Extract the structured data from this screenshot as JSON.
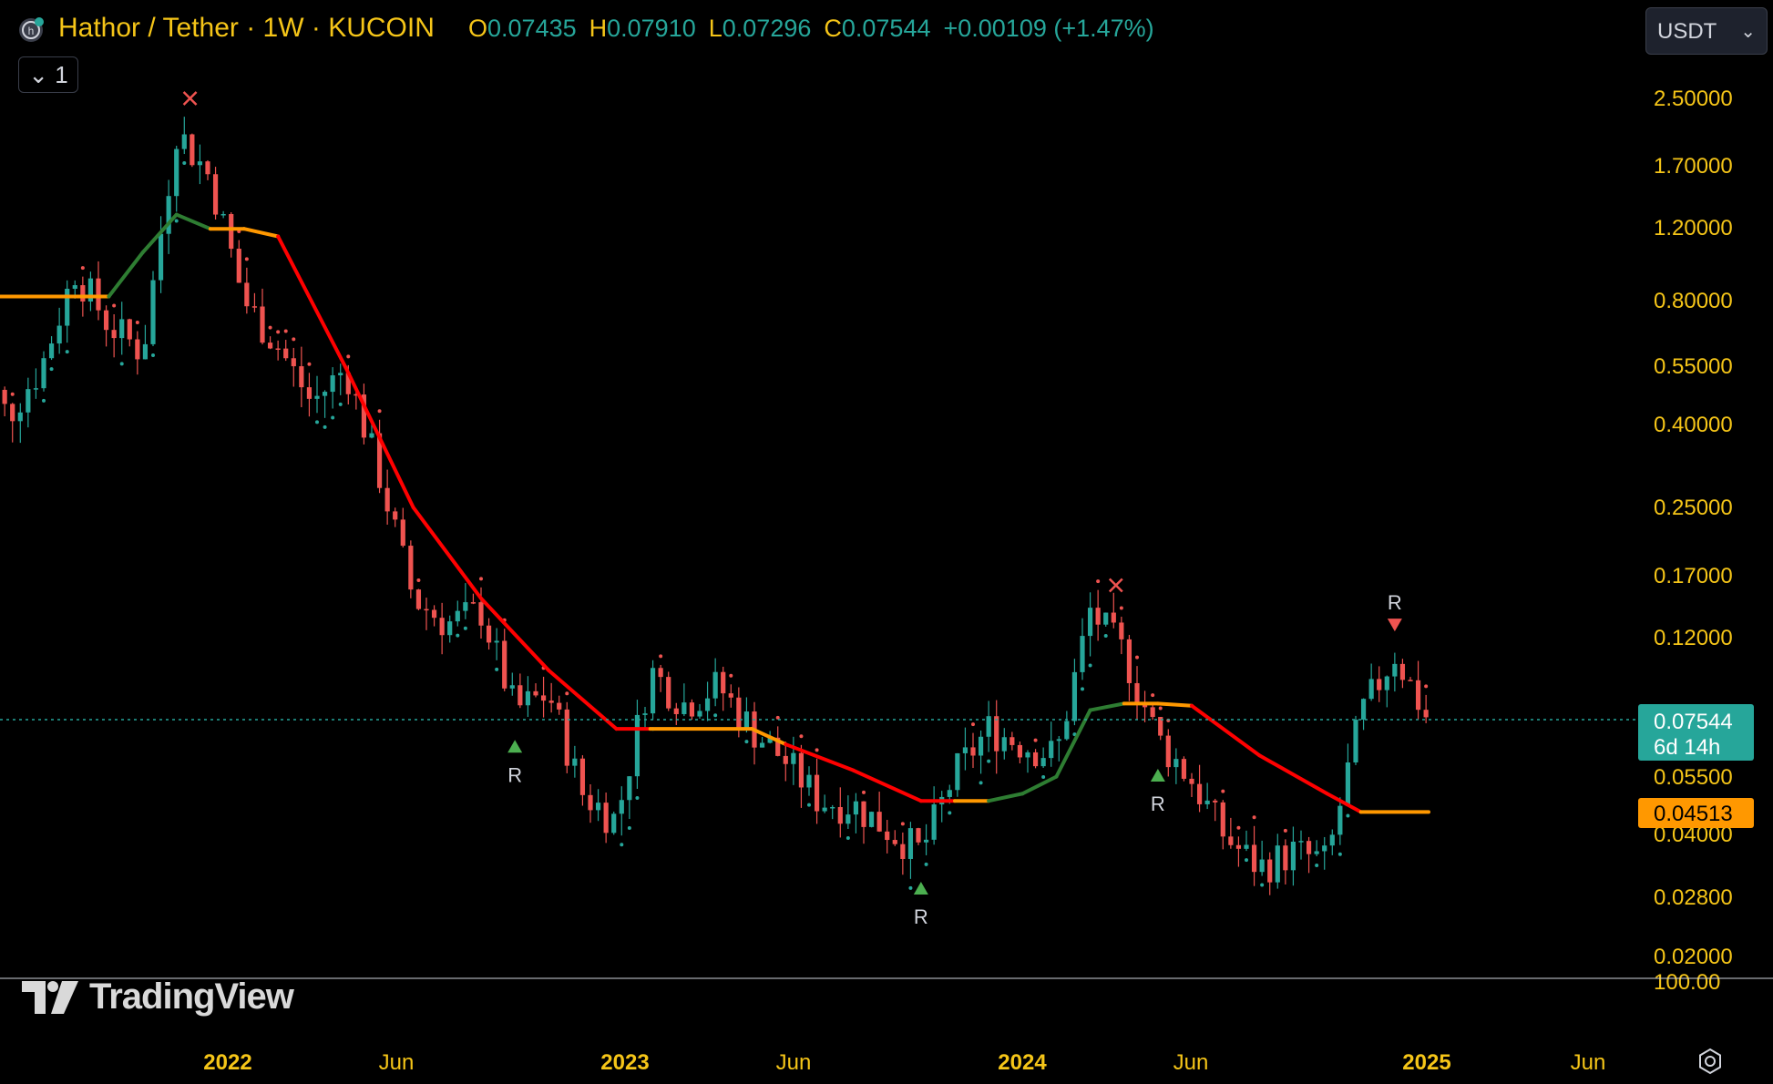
{
  "header": {
    "title": "Hathor / Tether · 1W · KUCOIN",
    "ohlc": {
      "o_label": "O",
      "o": "0.07435",
      "h_label": "H",
      "h": "0.07910",
      "l_label": "L",
      "l": "0.07296",
      "c_label": "C",
      "c": "0.07544",
      "change": "+0.00109 (+1.47%)"
    },
    "indicator_toggle": "1",
    "currency": "USDT"
  },
  "colors": {
    "up": "#26a69a",
    "down": "#ef5350",
    "accent": "#f5c518",
    "trend_red": "#ff0000",
    "trend_green": "#2e7d32",
    "trend_orange": "#ff9800"
  },
  "price_axis": [
    "2.50000",
    "1.70000",
    "1.20000",
    "0.80000",
    "0.55000",
    "0.40000",
    "0.25000",
    "0.17000",
    "0.12000",
    "0.05500",
    "0.04000",
    "0.02800",
    "0.02000",
    "100.00"
  ],
  "last_price": {
    "value": "0.07544",
    "countdown": "6d 14h"
  },
  "stop_price": "0.04513",
  "time_axis": [
    {
      "label": "2022",
      "bold": true
    },
    {
      "label": "Jun",
      "bold": false
    },
    {
      "label": "2023",
      "bold": true
    },
    {
      "label": "Jun",
      "bold": false
    },
    {
      "label": "2024",
      "bold": true
    },
    {
      "label": "Jun",
      "bold": false
    },
    {
      "label": "2025",
      "bold": true
    },
    {
      "label": "Jun",
      "bold": false
    }
  ],
  "signals": [
    {
      "type": "buy",
      "label": "R",
      "date": "2022-10"
    },
    {
      "type": "buy",
      "label": "R",
      "date": "2023-10"
    },
    {
      "type": "buy",
      "label": "R",
      "date": "2024-05"
    },
    {
      "type": "sell",
      "label": "R",
      "date": "2024-12"
    }
  ],
  "brand": "TradingView",
  "chart_data": {
    "type": "candlestick",
    "title": "Hathor / Tether · 1W · KUCOIN",
    "scale": "log",
    "ylim": [
      0.02,
      3.0
    ],
    "x_range": [
      "2021-06",
      "2025-09"
    ],
    "close_points": [
      [
        "2021-06",
        0.6
      ],
      [
        "2021-07",
        0.42
      ],
      [
        "2021-08",
        0.55
      ],
      [
        "2021-09",
        0.95
      ],
      [
        "2021-10",
        0.7
      ],
      [
        "2021-11",
        0.6
      ],
      [
        "2021-12",
        2.1
      ],
      [
        "2022-01",
        1.6
      ],
      [
        "2022-02",
        0.8
      ],
      [
        "2022-03",
        0.62
      ],
      [
        "2022-04",
        0.45
      ],
      [
        "2022-05",
        0.55
      ],
      [
        "2022-06",
        0.3
      ],
      [
        "2022-07",
        0.15
      ],
      [
        "2022-08",
        0.13
      ],
      [
        "2022-09",
        0.14
      ],
      [
        "2022-10",
        0.08
      ],
      [
        "2022-11",
        0.088
      ],
      [
        "2022-12",
        0.05
      ],
      [
        "2023-01",
        0.043
      ],
      [
        "2023-02",
        0.1
      ],
      [
        "2023-03",
        0.083
      ],
      [
        "2023-04",
        0.092
      ],
      [
        "2023-05",
        0.072
      ],
      [
        "2023-06",
        0.06
      ],
      [
        "2023-07",
        0.048
      ],
      [
        "2023-08",
        0.047
      ],
      [
        "2023-09",
        0.041
      ],
      [
        "2023-10",
        0.036
      ],
      [
        "2023-11",
        0.056
      ],
      [
        "2023-12",
        0.072
      ],
      [
        "2024-01",
        0.066
      ],
      [
        "2024-02",
        0.062
      ],
      [
        "2024-03",
        0.14
      ],
      [
        "2024-04",
        0.11
      ],
      [
        "2024-05",
        0.068
      ],
      [
        "2024-06",
        0.054
      ],
      [
        "2024-07",
        0.039
      ],
      [
        "2024-08",
        0.033
      ],
      [
        "2024-09",
        0.036
      ],
      [
        "2024-10",
        0.034
      ],
      [
        "2024-11",
        0.078
      ],
      [
        "2024-12",
        0.11
      ],
      [
        "2025-01",
        0.075
      ]
    ],
    "trend_line": [
      [
        "2021-06",
        0.82,
        "orange"
      ],
      [
        "2021-09",
        0.82,
        "orange"
      ],
      [
        "2021-10",
        0.82,
        "green"
      ],
      [
        "2021-11",
        1.05,
        "green"
      ],
      [
        "2021-12",
        1.3,
        "green"
      ],
      [
        "2022-01",
        1.2,
        "orange"
      ],
      [
        "2022-02",
        1.2,
        "orange"
      ],
      [
        "2022-03",
        1.15,
        "red"
      ],
      [
        "2022-05",
        0.55,
        "red"
      ],
      [
        "2022-07",
        0.25,
        "red"
      ],
      [
        "2022-09",
        0.15,
        "red"
      ],
      [
        "2022-11",
        0.1,
        "red"
      ],
      [
        "2023-01",
        0.072,
        "red"
      ],
      [
        "2023-02",
        0.072,
        "orange"
      ],
      [
        "2023-05",
        0.072,
        "orange"
      ],
      [
        "2023-06",
        0.066,
        "red"
      ],
      [
        "2023-08",
        0.057,
        "red"
      ],
      [
        "2023-10",
        0.048,
        "red"
      ],
      [
        "2023-11",
        0.048,
        "orange"
      ],
      [
        "2023-12",
        0.048,
        "green"
      ],
      [
        "2024-01",
        0.05,
        "green"
      ],
      [
        "2024-02",
        0.055,
        "green"
      ],
      [
        "2024-03",
        0.08,
        "green"
      ],
      [
        "2024-04",
        0.083,
        "orange"
      ],
      [
        "2024-05",
        0.083,
        "orange"
      ],
      [
        "2024-06",
        0.082,
        "red"
      ],
      [
        "2024-08",
        0.062,
        "red"
      ],
      [
        "2024-10",
        0.05,
        "red"
      ],
      [
        "2024-11",
        0.0451,
        "orange"
      ],
      [
        "2025-01",
        0.0451,
        "orange"
      ]
    ]
  }
}
